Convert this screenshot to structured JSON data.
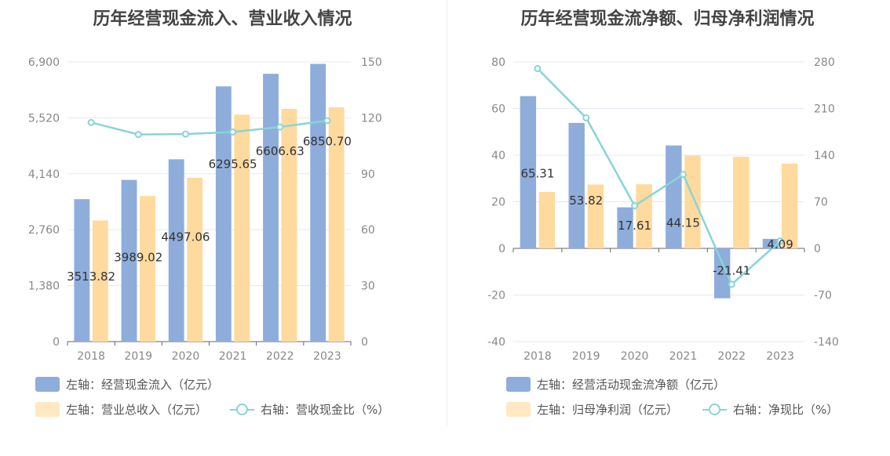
{
  "colors": {
    "bar_primary": "#8EADDB",
    "bar_secondary": "#FFDA9E",
    "line": "#88D4D8",
    "grid": "#E6E8EE",
    "tick_text": "#888888",
    "label_text": "#333333"
  },
  "chart_data": [
    {
      "type": "bar",
      "title": "历年经营现金流入、营业收入情况",
      "categories": [
        "2018",
        "2019",
        "2020",
        "2021",
        "2022",
        "2023"
      ],
      "y_left": {
        "ticks": [
          "0",
          "1,380",
          "2,760",
          "4,140",
          "5,520",
          "6,900"
        ],
        "ylim": [
          0,
          6900
        ]
      },
      "y_right": {
        "ticks": [
          "0",
          "30",
          "60",
          "90",
          "120",
          "150"
        ],
        "ylim": [
          0,
          150
        ]
      },
      "series": [
        {
          "name": "左轴：经营现金流入（亿元）",
          "type": "bar",
          "axis": "left",
          "color": "#8EADDB",
          "values": [
            3513.82,
            3989.02,
            4497.06,
            6295.65,
            6606.63,
            6850.7
          ],
          "labels": [
            "3513.82",
            "3989.02",
            "4497.06",
            "6295.65",
            "6606.63",
            "6850.70"
          ]
        },
        {
          "name": "左轴：营业总收入（亿元）",
          "type": "bar",
          "axis": "left",
          "color": "#FFDA9E",
          "values": [
            2990,
            3590,
            4040,
            5600,
            5740,
            5780
          ]
        },
        {
          "name": "右轴：营收现金比（%）",
          "type": "line",
          "axis": "right",
          "color": "#88D4D8",
          "values": [
            117.5,
            111.1,
            111.3,
            112.4,
            115.1,
            118.5
          ]
        }
      ],
      "grid": true,
      "legend": "bottom-left"
    },
    {
      "type": "bar",
      "title": "历年经营现金流净额、归母净利润情况",
      "categories": [
        "2018",
        "2019",
        "2020",
        "2021",
        "2022",
        "2023"
      ],
      "y_left": {
        "ticks": [
          "-40",
          "-20",
          "0",
          "20",
          "40",
          "60",
          "80"
        ],
        "ylim": [
          -40,
          80
        ]
      },
      "y_right": {
        "ticks": [
          "-140",
          "-70",
          "0",
          "70",
          "140",
          "210",
          "280"
        ],
        "ylim": [
          -140,
          280
        ]
      },
      "series": [
        {
          "name": "左轴：经营活动现金流净额（亿元）",
          "type": "bar",
          "axis": "left",
          "color": "#8EADDB",
          "values": [
            65.31,
            53.82,
            17.61,
            44.15,
            -21.41,
            4.09
          ],
          "labels": [
            "65.31",
            "53.82",
            "17.61",
            "44.15",
            "-21.41",
            "4.09"
          ]
        },
        {
          "name": "左轴：归母净利润（亿元）",
          "type": "bar",
          "axis": "left",
          "color": "#FFDA9E",
          "values": [
            24.2,
            27.4,
            27.5,
            39.8,
            39.3,
            36.4
          ]
        },
        {
          "name": "右轴：净现比（%）",
          "type": "line",
          "axis": "right",
          "color": "#88D4D8",
          "values": [
            270,
            196,
            64,
            111,
            -54,
            11
          ]
        }
      ],
      "grid": true,
      "legend": "bottom-left"
    }
  ]
}
